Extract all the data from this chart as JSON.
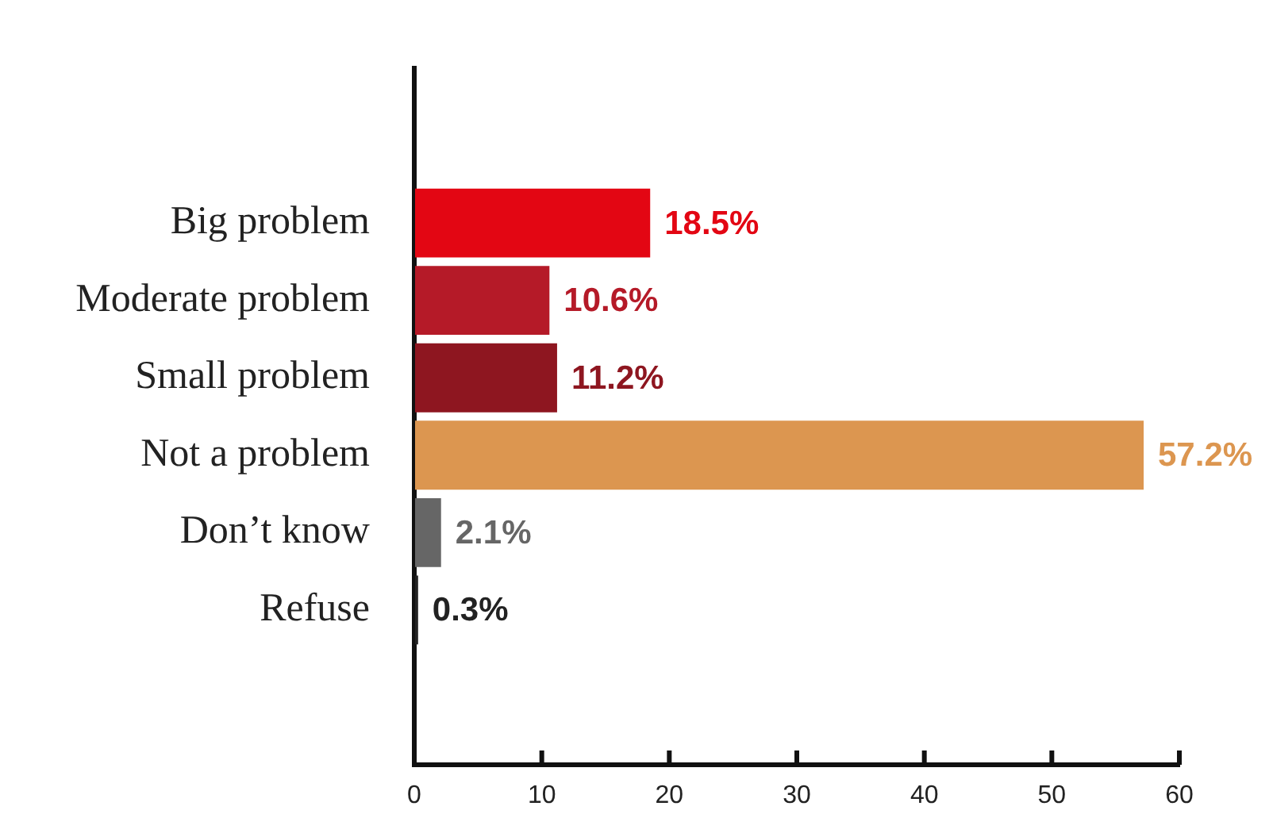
{
  "chart_data": {
    "type": "bar",
    "orientation": "horizontal",
    "categories": [
      "Big problem",
      "Moderate problem",
      "Small problem",
      "Not a problem",
      "Don’t know",
      "Refuse"
    ],
    "values": [
      18.5,
      10.6,
      11.2,
      57.2,
      2.1,
      0.3
    ],
    "colors": [
      "#e30613",
      "#b51a28",
      "#8e1620",
      "#dc9650",
      "#666666",
      "#222222"
    ],
    "value_labels": [
      "18.5%",
      "10.6%",
      "11.2%",
      "57.2%",
      "2.1%",
      "0.3%"
    ],
    "xlim": [
      0,
      60
    ],
    "xticks": [
      0,
      10,
      20,
      30,
      40,
      50,
      60
    ],
    "grid": false
  }
}
